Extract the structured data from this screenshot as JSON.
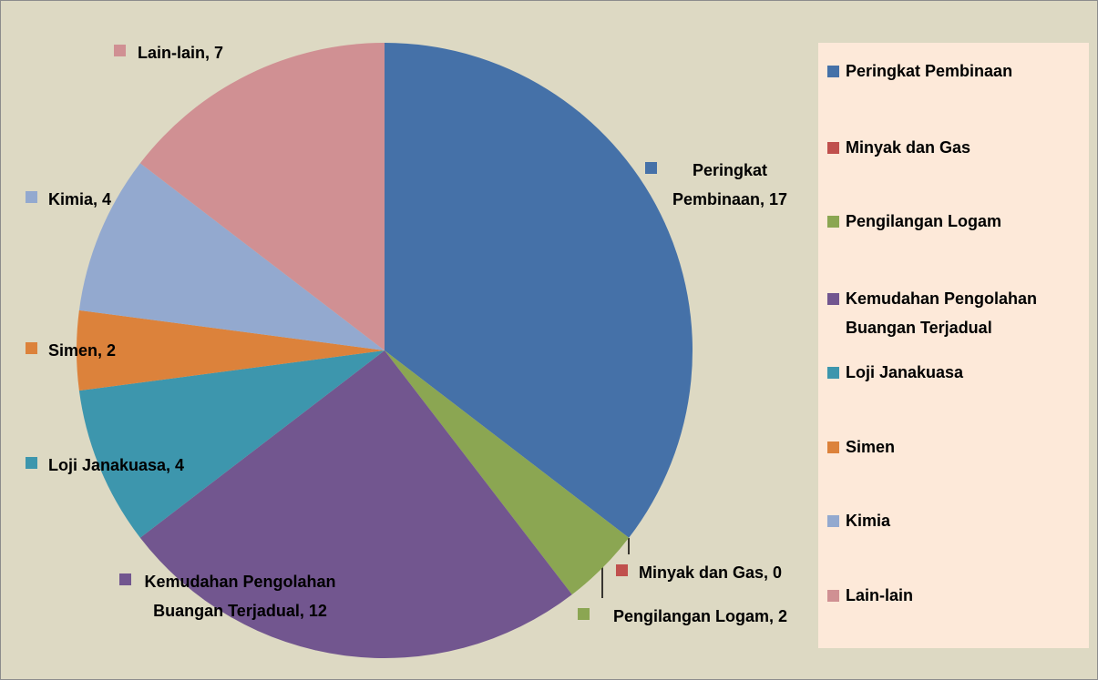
{
  "chart_data": {
    "type": "pie",
    "categories": [
      "Peringkat Pembinaan",
      "Minyak dan Gas",
      "Pengilangan Logam",
      "Kemudahan Pengolahan Buangan Terjadual",
      "Loji Janakuasa",
      "Simen",
      "Kimia",
      "Lain-lain"
    ],
    "values": [
      17,
      0,
      2,
      12,
      4,
      2,
      4,
      7
    ],
    "value_labels": [
      "Peringkat Pembinaan, 17",
      "Minyak dan Gas, 0",
      "Pengilangan Logam, 2",
      "Kemudahan Pengolahan Buangan Terjadual, 12",
      "Loji Janakuasa, 4",
      "Simen, 2",
      "Kimia, 4",
      "Lain-lain, 7"
    ],
    "colors": [
      "#4571a8",
      "#c0504d",
      "#8ba652",
      "#72568f",
      "#3d96ad",
      "#dc823b",
      "#93a9cf",
      "#d09093"
    ],
    "legend": "right"
  }
}
